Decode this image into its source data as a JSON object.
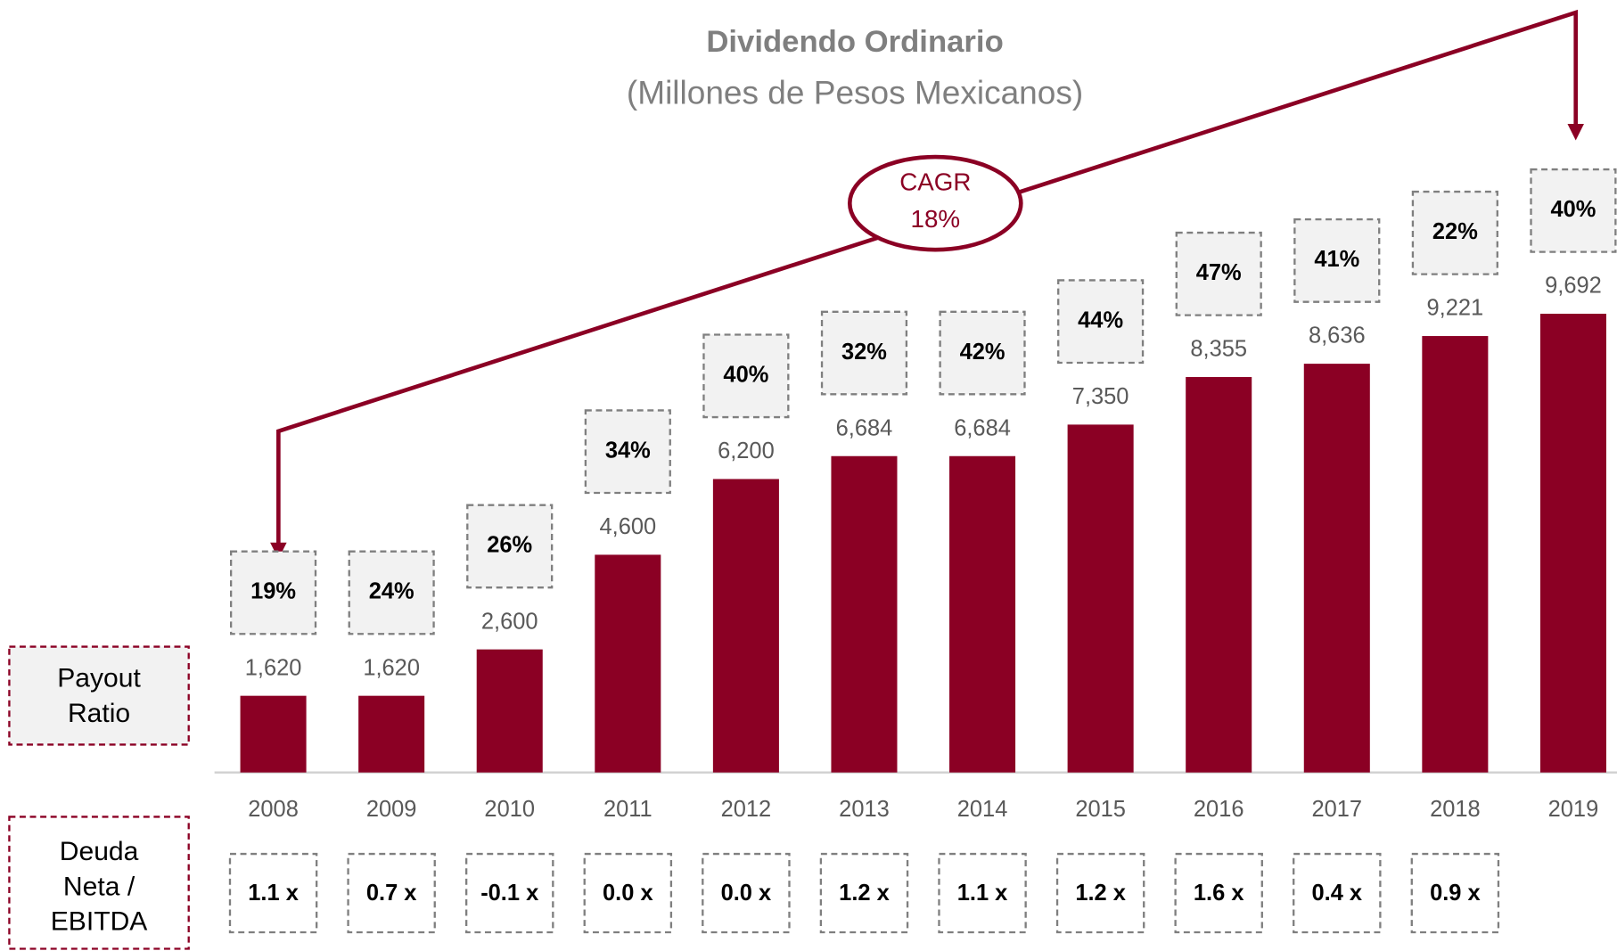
{
  "chart_data": {
    "type": "bar",
    "title": "Dividendo Ordinario",
    "subtitle": "(Millones de Pesos Mexicanos)",
    "categories": [
      "2008",
      "2009",
      "2010",
      "2011",
      "2012",
      "2013",
      "2014",
      "2015",
      "2016",
      "2017",
      "2018",
      "2019"
    ],
    "values": [
      1620,
      1620,
      2600,
      4600,
      6200,
      6684,
      6684,
      7350,
      8355,
      8636,
      9221,
      9692
    ],
    "value_labels": [
      "1,620",
      "1,620",
      "2,600",
      "4,600",
      "6,200",
      "6,684",
      "6,684",
      "7,350",
      "8,355",
      "8,636",
      "9,221",
      "9,692"
    ],
    "color": "#8b0024",
    "ylim": [
      0,
      10000
    ],
    "payout": {
      "name": "Payout Ratio",
      "values": [
        19,
        24,
        26,
        34,
        40,
        32,
        42,
        44,
        47,
        41,
        22,
        40
      ],
      "value_labels": [
        "19%",
        "24%",
        "26%",
        "34%",
        "40%",
        "32%",
        "42%",
        "44%",
        "47%",
        "41%",
        "22%",
        "40%"
      ]
    },
    "leverage": {
      "name": "Deuda Neta / EBITDA",
      "values": [
        1.1,
        0.7,
        -0.1,
        0.0,
        0.0,
        1.2,
        1.1,
        1.2,
        1.6,
        0.4,
        0.9,
        null
      ],
      "value_labels": [
        "1.1 x",
        "0.7 x",
        "-0.1 x",
        "0.0 x",
        "0.0 x",
        "1.2 x",
        "1.1 x",
        "1.2 x",
        "1.6 x",
        "0.4 x",
        "0.9 x",
        null
      ]
    },
    "cagr_label": "CAGR",
    "cagr_value": "18%"
  }
}
